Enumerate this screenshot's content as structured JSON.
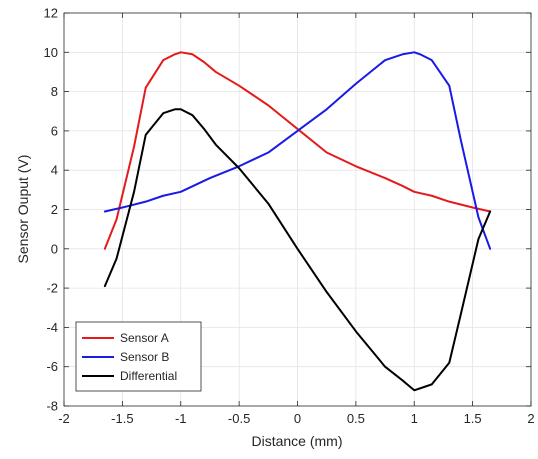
{
  "chart_data": {
    "type": "line",
    "title": "",
    "xlabel": "Distance (mm)",
    "ylabel": "Sensor Ouput (V)",
    "xlim": [
      -2,
      2
    ],
    "ylim": [
      -8,
      12
    ],
    "xticks": [
      -2,
      -1.5,
      -1,
      -0.5,
      0,
      0.5,
      1,
      1.5,
      2
    ],
    "yticks": [
      -8,
      -6,
      -4,
      -2,
      0,
      2,
      4,
      6,
      8,
      10,
      12
    ],
    "xtick_labels": [
      "-2",
      "-1.5",
      "-1",
      "-0.5",
      "0",
      "0.5",
      "1",
      "1.5",
      "2"
    ],
    "ytick_labels": [
      "-8",
      "-6",
      "-4",
      "-2",
      "0",
      "2",
      "4",
      "6",
      "8",
      "10",
      "12"
    ],
    "grid": true,
    "legend_position": "bottom-left",
    "series": [
      {
        "name": "Sensor A",
        "color": "#e41a1c",
        "x": [
          -1.65,
          -1.55,
          -1.4,
          -1.3,
          -1.15,
          -1.05,
          -1.0,
          -0.9,
          -0.8,
          -0.7,
          -0.5,
          -0.25,
          0.0,
          0.25,
          0.5,
          0.75,
          0.9,
          1.0,
          1.15,
          1.3,
          1.5,
          1.65
        ],
        "y": [
          0.0,
          1.5,
          5.2,
          8.2,
          9.6,
          9.9,
          10.0,
          9.9,
          9.5,
          9.0,
          8.3,
          7.3,
          6.1,
          4.9,
          4.2,
          3.6,
          3.2,
          2.9,
          2.7,
          2.4,
          2.1,
          1.9
        ]
      },
      {
        "name": "Sensor B",
        "color": "#1a1ae6",
        "x": [
          -1.65,
          -1.5,
          -1.3,
          -1.15,
          -1.0,
          -0.75,
          -0.5,
          -0.25,
          0.0,
          0.25,
          0.5,
          0.75,
          0.9,
          1.0,
          1.05,
          1.15,
          1.3,
          1.4,
          1.55,
          1.65
        ],
        "y": [
          1.9,
          2.1,
          2.4,
          2.7,
          2.9,
          3.6,
          4.2,
          4.9,
          6.0,
          7.1,
          8.4,
          9.6,
          9.9,
          10.0,
          9.9,
          9.6,
          8.3,
          5.5,
          1.6,
          0.0
        ]
      },
      {
        "name": "Differential",
        "color": "#000000",
        "x": [
          -1.65,
          -1.55,
          -1.4,
          -1.3,
          -1.15,
          -1.05,
          -1.0,
          -0.9,
          -0.8,
          -0.7,
          -0.5,
          -0.25,
          0.0,
          0.25,
          0.5,
          0.75,
          0.9,
          1.0,
          1.15,
          1.3,
          1.4,
          1.55,
          1.65
        ],
        "y": [
          -1.9,
          -0.5,
          2.9,
          5.8,
          6.9,
          7.1,
          7.1,
          6.8,
          6.1,
          5.3,
          4.1,
          2.3,
          0.0,
          -2.2,
          -4.2,
          -6.0,
          -6.7,
          -7.2,
          -6.9,
          -5.8,
          -3.3,
          0.5,
          1.9
        ]
      }
    ]
  }
}
